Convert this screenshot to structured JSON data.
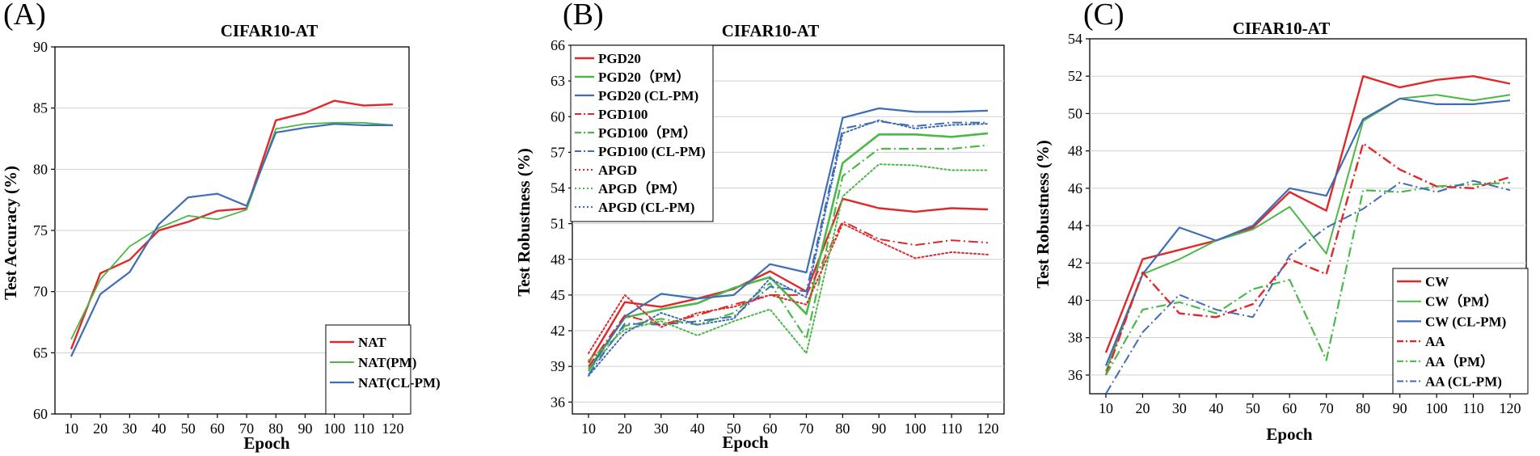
{
  "colors": {
    "red": "#e0282a",
    "green": "#4cb848",
    "blue": "#3f6db5",
    "axis": "#000000",
    "grid": "#d0d0d0"
  },
  "chart_data": [
    {
      "panel": "(A)",
      "type": "line",
      "title": "CIFAR10-AT",
      "xlabel": "Epoch",
      "ylabel": "Test Accuracy (%)",
      "x": [
        10,
        20,
        30,
        40,
        50,
        60,
        70,
        80,
        90,
        100,
        110,
        120
      ],
      "xticks": [
        "10",
        "20",
        "30",
        "40",
        "50",
        "60",
        "70",
        "80",
        "90",
        "100",
        "110",
        "120"
      ],
      "ylim": [
        60,
        90
      ],
      "yticks": [
        60,
        65,
        70,
        75,
        80,
        85,
        90
      ],
      "ytick_labels": [
        "60",
        "65",
        "70",
        "75",
        "80",
        "85",
        "90"
      ],
      "grid": true,
      "legend_position": "bottom-right",
      "series": [
        {
          "name": "NAT",
          "color": "red",
          "dash": "solid",
          "width": 2.4,
          "values": [
            65.3,
            71.5,
            72.6,
            75.0,
            75.7,
            76.6,
            76.8,
            84.0,
            84.6,
            85.6,
            85.2,
            85.3
          ]
        },
        {
          "name": "NAT(PM)",
          "color": "green",
          "dash": "solid",
          "width": 1.8,
          "values": [
            66.1,
            71.0,
            73.7,
            75.2,
            76.2,
            75.9,
            76.7,
            83.3,
            83.7,
            83.8,
            83.8,
            83.6
          ]
        },
        {
          "name": "NAT(CL-PM)",
          "color": "blue",
          "dash": "solid",
          "width": 2.2,
          "values": [
            64.7,
            69.8,
            71.6,
            75.5,
            77.7,
            78.0,
            77.0,
            83.0,
            83.4,
            83.7,
            83.6,
            83.6
          ]
        }
      ]
    },
    {
      "panel": "(B)",
      "type": "line",
      "title": "CIFAR10-AT",
      "xlabel": "Epoch",
      "ylabel": "Test Robustness (%)",
      "x": [
        10,
        20,
        30,
        40,
        50,
        60,
        70,
        80,
        90,
        100,
        110,
        120
      ],
      "xticks": [
        "10",
        "20",
        "30",
        "40",
        "50",
        "60",
        "70",
        "80",
        "90",
        "100",
        "110",
        "120"
      ],
      "ylim": [
        35,
        66
      ],
      "yticks": [
        36,
        39,
        42,
        45,
        48,
        51,
        54,
        57,
        60,
        63,
        66
      ],
      "ytick_labels": [
        "36",
        "39",
        "42",
        "45",
        "48",
        "51",
        "54",
        "57",
        "60",
        "63",
        "66"
      ],
      "grid": true,
      "legend_position": "top-left",
      "series": [
        {
          "name": "PGD20",
          "color": "red",
          "dash": "solid",
          "width": 2.4,
          "values": [
            39.3,
            44.4,
            44.0,
            44.7,
            45.5,
            47.0,
            45.3,
            53.1,
            52.3,
            52.0,
            52.3,
            52.2
          ]
        },
        {
          "name": "PGD20（PM）",
          "color": "green",
          "dash": "solid",
          "width": 2.6,
          "values": [
            38.8,
            43.1,
            43.8,
            44.3,
            45.6,
            46.5,
            43.4,
            56.1,
            58.5,
            58.5,
            58.3,
            58.6
          ]
        },
        {
          "name": "PGD20 (CL-PM)",
          "color": "blue",
          "dash": "solid",
          "width": 2.2,
          "values": [
            38.6,
            43.2,
            45.1,
            44.7,
            45.0,
            47.6,
            46.9,
            59.9,
            60.7,
            60.4,
            60.4,
            60.5
          ]
        },
        {
          "name": "PGD100",
          "color": "red",
          "dash": "dashdot",
          "width": 2.0,
          "values": [
            39.0,
            43.3,
            42.5,
            43.3,
            44.2,
            45.0,
            45.0,
            51.2,
            49.7,
            49.2,
            49.6,
            49.4
          ]
        },
        {
          "name": "PGD100（PM）",
          "color": "green",
          "dash": "dashdot",
          "width": 2.2,
          "values": [
            38.6,
            42.4,
            43.0,
            42.5,
            43.5,
            46.0,
            41.3,
            55.0,
            57.3,
            57.3,
            57.3,
            57.6
          ]
        },
        {
          "name": "PGD100 (CL-PM)",
          "color": "blue",
          "dash": "dashdot",
          "width": 2.0,
          "values": [
            38.3,
            42.6,
            42.5,
            42.8,
            43.2,
            45.7,
            45.3,
            59.0,
            59.6,
            59.2,
            59.5,
            59.5
          ]
        },
        {
          "name": "APGD",
          "color": "red",
          "dash": "dotted",
          "width": 2.0,
          "values": [
            40.1,
            45.0,
            42.3,
            43.5,
            44.0,
            45.0,
            44.2,
            51.0,
            49.5,
            48.1,
            48.6,
            48.4
          ]
        },
        {
          "name": "APGD（PM）",
          "color": "green",
          "dash": "dotted",
          "width": 2.0,
          "values": [
            39.5,
            42.1,
            42.8,
            41.6,
            42.8,
            43.8,
            40.1,
            53.3,
            56.0,
            55.9,
            55.5,
            55.5
          ]
        },
        {
          "name": "APGD (CL-PM)",
          "color": "blue",
          "dash": "dotted",
          "width": 2.0,
          "values": [
            38.2,
            41.8,
            43.5,
            42.5,
            43.0,
            46.4,
            44.8,
            58.6,
            59.7,
            59.0,
            59.3,
            59.4
          ]
        }
      ]
    },
    {
      "panel": "(C)",
      "type": "line",
      "title": "CIFAR10-AT",
      "xlabel": "Epoch",
      "ylabel": "Test Robustness (%)",
      "x": [
        10,
        20,
        30,
        40,
        50,
        60,
        70,
        80,
        90,
        100,
        110,
        120
      ],
      "xticks": [
        "10",
        "20",
        "30",
        "40",
        "50",
        "60",
        "70",
        "80",
        "90",
        "100",
        "110",
        "120"
      ],
      "ylim": [
        35,
        54
      ],
      "yticks": [
        36,
        38,
        40,
        42,
        44,
        46,
        48,
        50,
        52,
        54
      ],
      "ytick_labels": [
        "36",
        "38",
        "40",
        "42",
        "44",
        "46",
        "48",
        "50",
        "52",
        "54"
      ],
      "grid": true,
      "legend_position": "bottom-right",
      "series": [
        {
          "name": "CW",
          "color": "red",
          "dash": "solid",
          "width": 2.4,
          "values": [
            37.2,
            42.2,
            42.7,
            43.2,
            43.9,
            45.8,
            44.8,
            52.0,
            51.4,
            51.8,
            52.0,
            51.6
          ]
        },
        {
          "name": "CW（PM）",
          "color": "green",
          "dash": "solid",
          "width": 2.0,
          "values": [
            36.2,
            41.4,
            42.2,
            43.2,
            43.8,
            45.0,
            42.5,
            49.6,
            50.8,
            51.0,
            50.7,
            51.0
          ]
        },
        {
          "name": "CW (CL-PM)",
          "color": "blue",
          "dash": "solid",
          "width": 2.2,
          "values": [
            36.5,
            41.4,
            43.9,
            43.2,
            44.0,
            46.0,
            45.6,
            49.7,
            50.8,
            50.5,
            50.5,
            50.7
          ]
        },
        {
          "name": "AA",
          "color": "red",
          "dash": "dashdot",
          "width": 2.4,
          "values": [
            36.0,
            41.5,
            39.3,
            39.1,
            39.8,
            42.2,
            41.4,
            48.4,
            47.0,
            46.1,
            46.0,
            46.6
          ]
        },
        {
          "name": "AA（PM）",
          "color": "green",
          "dash": "dashdot",
          "width": 2.2,
          "values": [
            36.0,
            39.5,
            39.9,
            39.3,
            40.6,
            41.1,
            36.8,
            45.9,
            45.8,
            46.1,
            46.2,
            46.3
          ]
        },
        {
          "name": "AA (CL-PM)",
          "color": "blue",
          "dash": "dashdot",
          "width": 2.0,
          "values": [
            35.0,
            38.3,
            40.3,
            39.5,
            39.1,
            42.4,
            43.9,
            44.9,
            46.3,
            45.8,
            46.4,
            45.9
          ]
        }
      ]
    }
  ]
}
